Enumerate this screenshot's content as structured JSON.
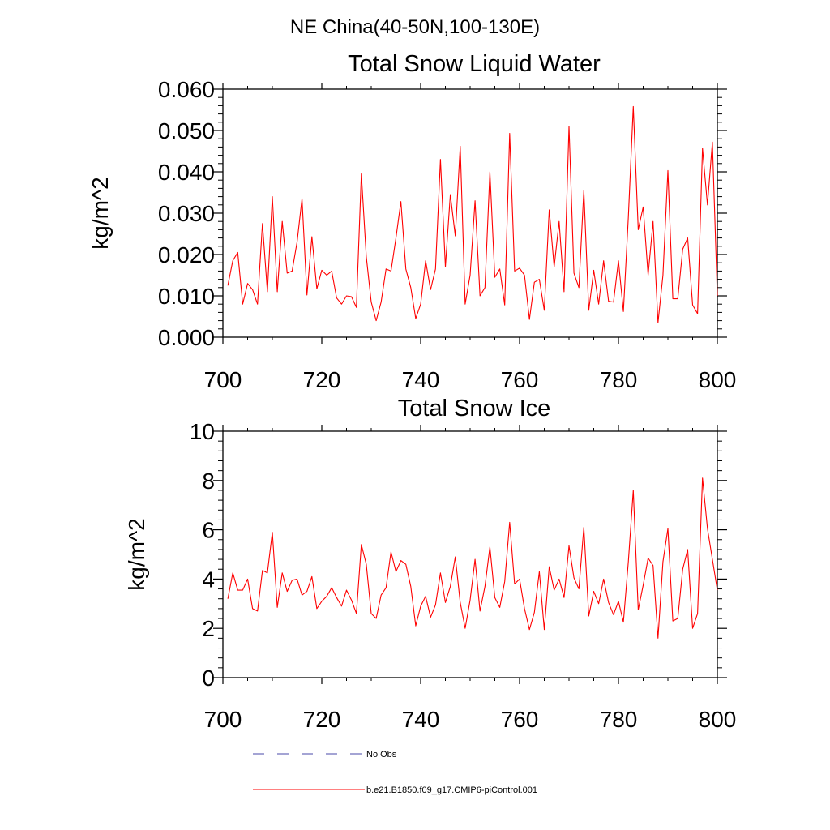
{
  "figure_title": "NE China(40-50N,100-130E)",
  "colors": {
    "model": "#ff0000",
    "obs": "#4a4aa8",
    "axis": "#000000"
  },
  "legend": {
    "entries": [
      {
        "label": "No Obs",
        "style": "dashed",
        "color": "#4a4aa8"
      },
      {
        "label": "b.e21.B1850.f09_g17.CMIP6-piControl.001",
        "style": "solid",
        "color": "#ff0000"
      }
    ]
  },
  "chart_data": [
    {
      "type": "line",
      "title": "Total Snow Liquid Water",
      "ylabel": "kg/m^2",
      "xlabel": "",
      "xlim": [
        700,
        800
      ],
      "ylim": [
        0,
        0.06
      ],
      "xticks": [
        700,
        720,
        740,
        760,
        780,
        800
      ],
      "xtick_labels": [
        "700",
        "720",
        "740",
        "760",
        "780",
        "800"
      ],
      "yticks": [
        0,
        0.01,
        0.02,
        0.03,
        0.04,
        0.05,
        0.06
      ],
      "ytick_labels": [
        "0.000",
        "0.010",
        "0.020",
        "0.030",
        "0.040",
        "0.050",
        "0.060"
      ],
      "series": [
        {
          "name": "b.e21.B1850.f09_g17.CMIP6-piControl.001",
          "x_start": 701,
          "values": [
            0.0125,
            0.0185,
            0.0205,
            0.008,
            0.013,
            0.0115,
            0.008,
            0.0275,
            0.011,
            0.034,
            0.011,
            0.028,
            0.0155,
            0.016,
            0.023,
            0.0335,
            0.0102,
            0.0243,
            0.0117,
            0.0162,
            0.015,
            0.016,
            0.0095,
            0.008,
            0.01,
            0.0098,
            0.0072,
            0.0395,
            0.0195,
            0.0085,
            0.004,
            0.0085,
            0.0165,
            0.016,
            0.024,
            0.0328,
            0.0165,
            0.012,
            0.0045,
            0.008,
            0.0185,
            0.0115,
            0.0165,
            0.043,
            0.017,
            0.0345,
            0.0245,
            0.0462,
            0.008,
            0.015,
            0.033,
            0.01,
            0.012,
            0.04,
            0.0145,
            0.0165,
            0.0078,
            0.0493,
            0.016,
            0.0167,
            0.015,
            0.0043,
            0.0133,
            0.014,
            0.0065,
            0.0308,
            0.017,
            0.028,
            0.011,
            0.051,
            0.0155,
            0.012,
            0.0355,
            0.0065,
            0.0162,
            0.008,
            0.0185,
            0.0087,
            0.0085,
            0.0185,
            0.0062,
            0.029,
            0.0558,
            0.026,
            0.0315,
            0.015,
            0.028,
            0.0035,
            0.015,
            0.0403,
            0.0093,
            0.0093,
            0.0213,
            0.024,
            0.0078,
            0.0057,
            0.0457,
            0.032,
            0.0472,
            0.01
          ]
        }
      ]
    },
    {
      "type": "line",
      "title": "Total Snow Ice",
      "ylabel": "kg/m^2",
      "xlabel": "",
      "xlim": [
        700,
        800
      ],
      "ylim": [
        0,
        10
      ],
      "xticks": [
        700,
        720,
        740,
        760,
        780,
        800
      ],
      "xtick_labels": [
        "700",
        "720",
        "740",
        "760",
        "780",
        "800"
      ],
      "yticks": [
        0,
        2,
        4,
        6,
        8,
        10
      ],
      "ytick_labels": [
        "0",
        "2",
        "4",
        "6",
        "8",
        "10"
      ],
      "series": [
        {
          "name": "b.e21.B1850.f09_g17.CMIP6-piControl.001",
          "x_start": 701,
          "values": [
            3.2,
            4.25,
            3.55,
            3.55,
            4.0,
            2.8,
            2.7,
            4.35,
            4.25,
            5.9,
            2.85,
            4.25,
            3.5,
            3.95,
            4.0,
            3.35,
            3.5,
            4.1,
            2.8,
            3.1,
            3.3,
            3.65,
            3.25,
            2.9,
            3.55,
            3.15,
            2.6,
            5.4,
            4.6,
            2.6,
            2.4,
            3.35,
            3.65,
            5.1,
            4.3,
            4.75,
            4.6,
            3.7,
            2.1,
            2.9,
            3.3,
            2.45,
            2.95,
            4.25,
            3.05,
            3.7,
            4.9,
            3.05,
            2.0,
            3.15,
            4.8,
            2.7,
            3.7,
            5.3,
            3.25,
            2.85,
            3.9,
            6.3,
            3.8,
            4.0,
            2.8,
            1.95,
            2.65,
            4.3,
            1.95,
            4.5,
            3.55,
            4.0,
            3.25,
            5.35,
            4.05,
            3.6,
            6.1,
            2.5,
            3.5,
            3.0,
            4.0,
            3.05,
            2.55,
            3.1,
            2.25,
            4.7,
            7.6,
            2.75,
            3.75,
            4.85,
            4.55,
            1.6,
            4.7,
            6.05,
            2.3,
            2.4,
            4.4,
            5.2,
            2.0,
            2.6,
            8.1,
            6.05,
            4.8,
            3.55
          ]
        }
      ]
    }
  ]
}
